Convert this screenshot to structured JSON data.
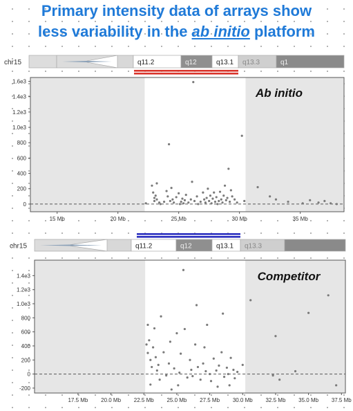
{
  "title": {
    "line1": "Primary intensity data of arrays show",
    "line2_pre": "less variability in the ",
    "line2_em": "ab initio",
    "line2_post": " platform"
  },
  "colors": {
    "title": "#1f7ad8",
    "top_highlight_bars": "#d9342b",
    "bottom_highlight_bars": "#2b2fbf",
    "points": "#7a7a7a",
    "shade": "#e6e6e6"
  },
  "chart_data": [
    {
      "type": "scatter",
      "label": "Ab initio",
      "chromosome": "chr15",
      "bands": [
        "q11.2",
        "q12",
        "q13.1",
        "q13.3",
        "q1"
      ],
      "highlight_bars": 2,
      "xlim": [
        12.8,
        38.6
      ],
      "ylim": [
        -100,
        1650
      ],
      "x_ticks": [
        15,
        20,
        25,
        30,
        35
      ],
      "x_tick_labels": [
        "15 Mb",
        "20 Mb",
        "25 Mb",
        "30 Mb",
        "35 Mb"
      ],
      "y_ticks": [
        0,
        200,
        400,
        600,
        800,
        1000,
        1200,
        1400,
        1600
      ],
      "y_tick_labels": [
        "0",
        "200",
        "400",
        "600",
        "800",
        "1.0e3",
        "1.2e3",
        "1.4e3",
        "1.6e3"
      ],
      "reference_line": 0,
      "highlight_region": [
        22.2,
        30.5
      ],
      "points": [
        [
          22.3,
          10
        ],
        [
          22.8,
          240
        ],
        [
          22.9,
          150
        ],
        [
          23.0,
          80
        ],
        [
          23.0,
          40
        ],
        [
          23.1,
          110
        ],
        [
          23.2,
          60
        ],
        [
          23.2,
          270
        ],
        [
          23.4,
          20
        ],
        [
          23.5,
          0
        ],
        [
          23.8,
          30
        ],
        [
          24.0,
          170
        ],
        [
          24.1,
          100
        ],
        [
          24.2,
          780
        ],
        [
          24.3,
          40
        ],
        [
          24.4,
          210
        ],
        [
          24.5,
          60
        ],
        [
          24.6,
          20
        ],
        [
          24.8,
          90
        ],
        [
          25.0,
          140
        ],
        [
          25.1,
          0
        ],
        [
          25.2,
          30
        ],
        [
          25.3,
          70
        ],
        [
          25.4,
          10
        ],
        [
          25.5,
          50
        ],
        [
          25.6,
          120
        ],
        [
          25.8,
          20
        ],
        [
          26.0,
          60
        ],
        [
          26.1,
          290
        ],
        [
          26.2,
          1590
        ],
        [
          26.3,
          40
        ],
        [
          26.5,
          100
        ],
        [
          26.6,
          0
        ],
        [
          26.8,
          30
        ],
        [
          27.0,
          150
        ],
        [
          27.1,
          60
        ],
        [
          27.2,
          20
        ],
        [
          27.3,
          80
        ],
        [
          27.4,
          200
        ],
        [
          27.5,
          40
        ],
        [
          27.6,
          110
        ],
        [
          27.7,
          10
        ],
        [
          27.8,
          70
        ],
        [
          27.9,
          150
        ],
        [
          28.0,
          30
        ],
        [
          28.1,
          90
        ],
        [
          28.2,
          0
        ],
        [
          28.3,
          40
        ],
        [
          28.4,
          160
        ],
        [
          28.5,
          60
        ],
        [
          28.6,
          20
        ],
        [
          28.7,
          110
        ],
        [
          28.8,
          240
        ],
        [
          28.9,
          50
        ],
        [
          29.0,
          80
        ],
        [
          29.1,
          460
        ],
        [
          29.2,
          30
        ],
        [
          29.3,
          180
        ],
        [
          29.4,
          100
        ],
        [
          29.6,
          60
        ],
        [
          29.8,
          20
        ],
        [
          30.2,
          890
        ],
        [
          30.4,
          40
        ],
        [
          31.5,
          220
        ],
        [
          32.5,
          100
        ],
        [
          33.0,
          60
        ],
        [
          34.0,
          30
        ],
        [
          35.2,
          10
        ],
        [
          35.8,
          50
        ],
        [
          36.5,
          20
        ],
        [
          37.0,
          40
        ],
        [
          37.5,
          10
        ],
        [
          38.0,
          0
        ]
      ]
    },
    {
      "type": "scatter",
      "label": "Competitor",
      "chromosome": "chr15",
      "bands": [
        "q11.2",
        "q12",
        "q13.1",
        "q13.3"
      ],
      "highlight_bars": 2,
      "xlim": [
        14.2,
        37.8
      ],
      "ylim": [
        -270,
        1620
      ],
      "x_ticks": [
        17.5,
        20.0,
        22.5,
        25.0,
        27.5,
        30.0,
        32.5,
        35.0,
        37.5
      ],
      "x_tick_labels": [
        "17.5 Mb",
        "20.0 Mb",
        "22.5 Mb",
        "25.0 Mb",
        "27.5 Mb",
        "30.0 Mb",
        "32.5 Mb",
        "35.0 Mb",
        "37.5 Mb"
      ],
      "y_ticks": [
        -200,
        0,
        200,
        400,
        600,
        800,
        1000,
        1200,
        1400
      ],
      "y_tick_labels": [
        "-200",
        "0",
        "200",
        "400",
        "600",
        "800",
        "1.0e3",
        "1.2e3",
        "1.4e3"
      ],
      "reference_line": 0,
      "highlight_region": [
        22.6,
        30.2
      ],
      "points": [
        [
          22.7,
          420
        ],
        [
          22.8,
          700
        ],
        [
          22.8,
          300
        ],
        [
          22.9,
          480
        ],
        [
          23.0,
          200
        ],
        [
          23.0,
          -150
        ],
        [
          23.1,
          100
        ],
        [
          23.2,
          380
        ],
        [
          23.3,
          650
        ],
        [
          23.4,
          240
        ],
        [
          23.5,
          50
        ],
        [
          23.6,
          130
        ],
        [
          23.7,
          -80
        ],
        [
          23.8,
          820
        ],
        [
          24.0,
          310
        ],
        [
          24.2,
          -20
        ],
        [
          24.4,
          150
        ],
        [
          24.5,
          460
        ],
        [
          24.6,
          -220
        ],
        [
          24.8,
          80
        ],
        [
          25.0,
          580
        ],
        [
          25.1,
          -160
        ],
        [
          25.2,
          20
        ],
        [
          25.3,
          290
        ],
        [
          25.5,
          1480
        ],
        [
          25.6,
          640
        ],
        [
          25.8,
          -50
        ],
        [
          26.0,
          200
        ],
        [
          26.1,
          60
        ],
        [
          26.2,
          -30
        ],
        [
          26.4,
          420
        ],
        [
          26.5,
          980
        ],
        [
          26.6,
          100
        ],
        [
          26.8,
          -80
        ],
        [
          27.0,
          150
        ],
        [
          27.1,
          380
        ],
        [
          27.2,
          40
        ],
        [
          27.3,
          700
        ],
        [
          27.5,
          0
        ],
        [
          27.6,
          -100
        ],
        [
          27.8,
          220
        ],
        [
          28.0,
          50
        ],
        [
          28.1,
          -180
        ],
        [
          28.2,
          120
        ],
        [
          28.4,
          310
        ],
        [
          28.5,
          860
        ],
        [
          28.6,
          -40
        ],
        [
          28.8,
          90
        ],
        [
          28.9,
          0
        ],
        [
          29.0,
          -160
        ],
        [
          29.1,
          230
        ],
        [
          29.3,
          60
        ],
        [
          29.4,
          -60
        ],
        [
          29.6,
          30
        ],
        [
          30.0,
          130
        ],
        [
          30.6,
          1050
        ],
        [
          32.3,
          -20
        ],
        [
          32.5,
          540
        ],
        [
          32.8,
          -80
        ],
        [
          34.0,
          40
        ],
        [
          35.0,
          870
        ],
        [
          36.5,
          1120
        ],
        [
          37.1,
          -160
        ]
      ]
    }
  ]
}
